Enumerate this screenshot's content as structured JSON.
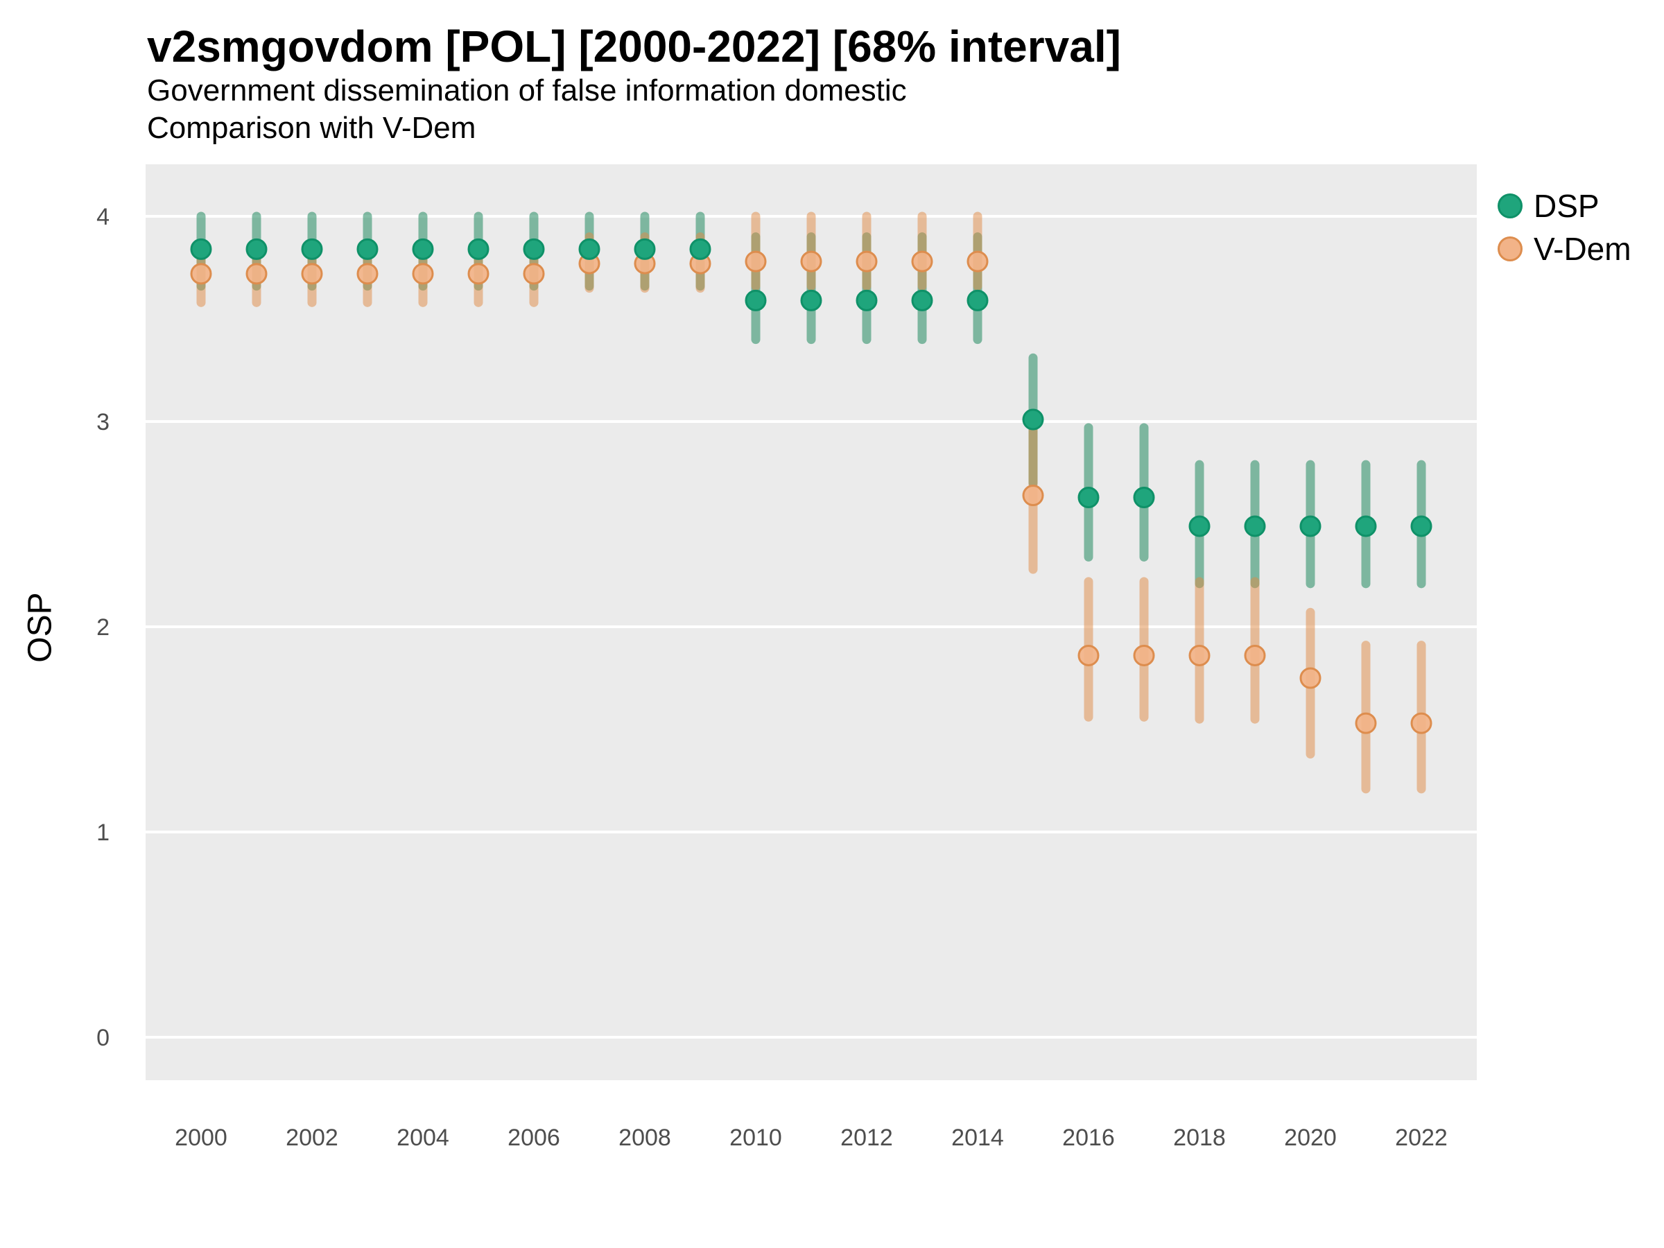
{
  "title": "v2smgovdom [POL] [2000-2022] [68% interval]",
  "subtitle1": "Government dissemination of false information domestic",
  "subtitle2": "Comparison with V-Dem",
  "ylabel": "OSP",
  "legend": {
    "items": [
      {
        "label": "DSP",
        "color": "#1FA57C",
        "stroke": "#0F9168"
      },
      {
        "label": "V-Dem",
        "color": "#F2B388",
        "stroke": "#DD8D4E"
      }
    ]
  },
  "colors": {
    "panel": "#EBEBEB",
    "grid": "#FFFFFF",
    "tick_text": "#4D4D4D",
    "dsp_point": "#1FA57C",
    "dsp_point_stroke": "#0F9168",
    "dsp_bar": "rgba(34,139,97,0.55)",
    "vdem_point": "rgba(242,179,136,0.92)",
    "vdem_point_stroke": "#DD8D4E",
    "vdem_bar": "rgba(224,138,68,0.50)"
  },
  "chart_data": {
    "type": "scatter",
    "subtype": "pointrange",
    "interval": "68%",
    "title": "v2smgovdom [POL] [2000-2022] [68% interval]",
    "xlabel": "",
    "ylabel": "OSP",
    "x": [
      2000,
      2001,
      2002,
      2003,
      2004,
      2005,
      2006,
      2007,
      2008,
      2009,
      2010,
      2011,
      2012,
      2013,
      2014,
      2015,
      2016,
      2017,
      2018,
      2019,
      2020,
      2021,
      2022
    ],
    "xticks": [
      2000,
      2002,
      2004,
      2006,
      2008,
      2010,
      2012,
      2014,
      2016,
      2018,
      2020,
      2022
    ],
    "yticks": [
      0,
      1,
      2,
      3,
      4
    ],
    "xlim": [
      1999,
      2023
    ],
    "ylim": [
      -0.21,
      4.25
    ],
    "grid": "major-horizontal-only",
    "legend_position": "right",
    "series": [
      {
        "name": "DSP",
        "values": [
          3.84,
          3.84,
          3.84,
          3.84,
          3.84,
          3.84,
          3.84,
          3.84,
          3.84,
          3.84,
          3.59,
          3.59,
          3.59,
          3.59,
          3.59,
          3.01,
          2.63,
          2.63,
          2.49,
          2.49,
          2.49,
          2.49,
          2.49
        ],
        "low": [
          3.66,
          3.66,
          3.66,
          3.66,
          3.66,
          3.66,
          3.66,
          3.66,
          3.66,
          3.66,
          3.4,
          3.4,
          3.4,
          3.4,
          3.4,
          2.7,
          2.34,
          2.34,
          2.21,
          2.21,
          2.21,
          2.21,
          2.21
        ],
        "high": [
          4.0,
          4.0,
          4.0,
          4.0,
          4.0,
          4.0,
          4.0,
          4.0,
          4.0,
          4.0,
          3.9,
          3.9,
          3.9,
          3.9,
          3.9,
          3.31,
          2.97,
          2.97,
          2.79,
          2.79,
          2.79,
          2.79,
          2.79
        ]
      },
      {
        "name": "V-Dem",
        "values": [
          3.72,
          3.72,
          3.72,
          3.72,
          3.72,
          3.72,
          3.72,
          3.77,
          3.77,
          3.77,
          3.78,
          3.78,
          3.78,
          3.78,
          3.78,
          2.64,
          1.86,
          1.86,
          1.86,
          1.86,
          1.75,
          1.53,
          1.53
        ],
        "low": [
          3.58,
          3.58,
          3.58,
          3.58,
          3.58,
          3.58,
          3.58,
          3.65,
          3.65,
          3.65,
          3.66,
          3.66,
          3.66,
          3.66,
          3.66,
          2.28,
          1.56,
          1.56,
          1.55,
          1.55,
          1.38,
          1.21,
          1.21
        ],
        "high": [
          3.86,
          3.86,
          3.86,
          3.86,
          3.86,
          3.86,
          3.86,
          3.9,
          3.9,
          3.9,
          4.0,
          4.0,
          4.0,
          4.0,
          4.0,
          2.96,
          2.22,
          2.22,
          2.22,
          2.22,
          2.07,
          1.91,
          1.91
        ]
      }
    ]
  }
}
